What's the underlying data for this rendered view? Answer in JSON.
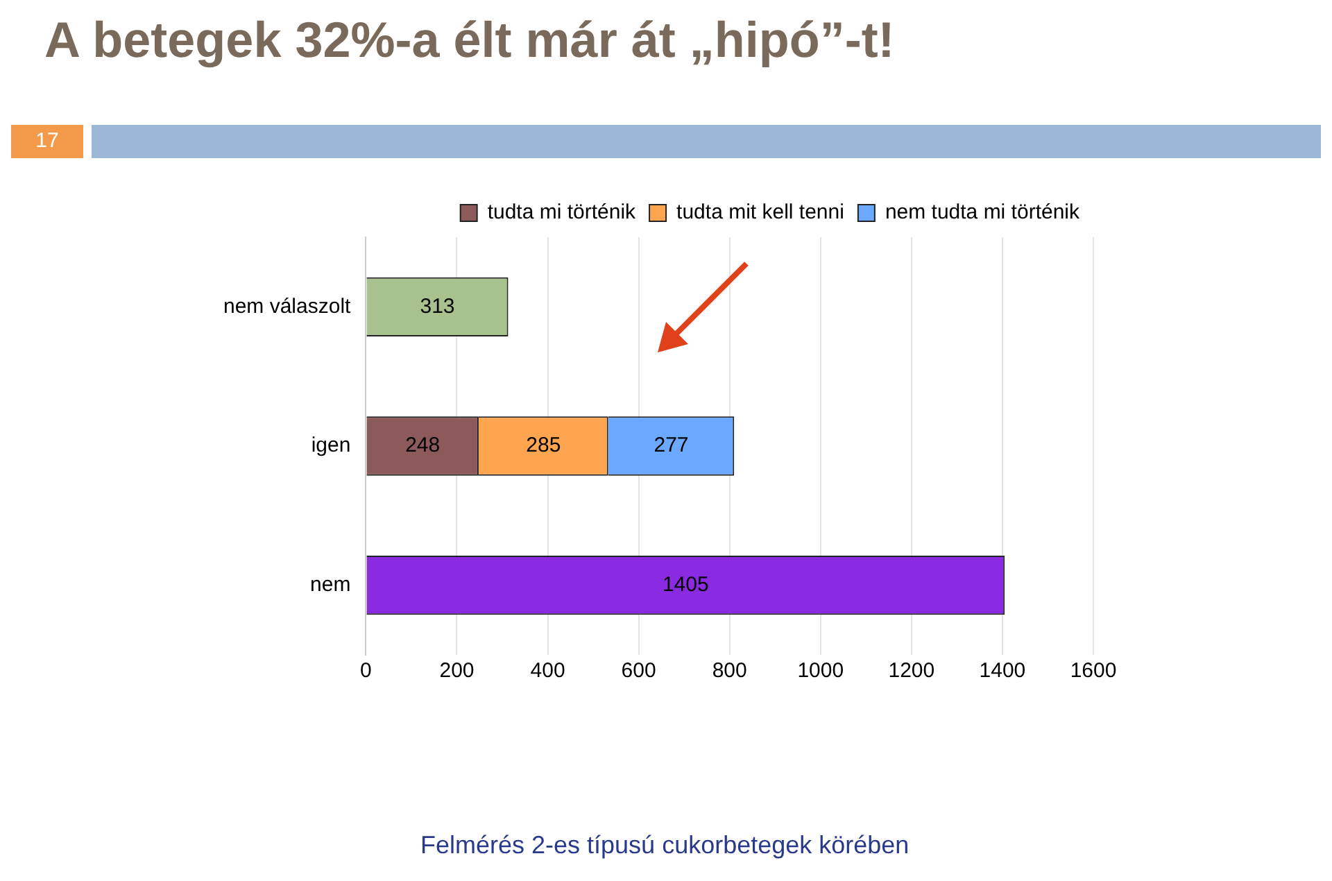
{
  "chart_data": {
    "type": "bar",
    "orientation": "horizontal",
    "stacked": true,
    "title": "A betegek 32%-a élt már át „hipó”-t!",
    "annotations": [
      "17",
      "Felmérés 2-es típusú cukorbetegek körében"
    ],
    "categories": [
      "nem válaszolt",
      "igen",
      "nem"
    ],
    "series": [
      {
        "color": "#a7c28e",
        "values": [
          313,
          null,
          null
        ]
      },
      {
        "name": "tudta mi történik",
        "color": "#8c5a5a",
        "values": [
          null,
          248,
          null
        ]
      },
      {
        "name": "tudta mit kell tenni",
        "color": "#ffa54f",
        "values": [
          null,
          285,
          null
        ]
      },
      {
        "name": "nem tudta mi történik",
        "color": "#6aa9ff",
        "values": [
          null,
          277,
          null
        ]
      },
      {
        "color": "#8a2be2",
        "values": [
          null,
          null,
          1405
        ]
      }
    ],
    "xlim": [
      0,
      1600
    ],
    "xticks": [
      0,
      200,
      400,
      600,
      800,
      1000,
      1200,
      1400,
      1600
    ],
    "grid": "x",
    "legend": "top right",
    "data_labels": true
  }
}
